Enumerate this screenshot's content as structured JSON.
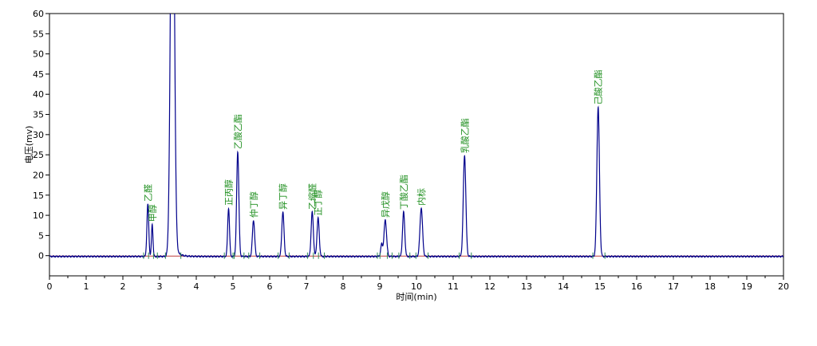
{
  "chart_data": {
    "type": "line",
    "xlabel": "时间(min)",
    "ylabel": "电压(mv)",
    "xlim": [
      0,
      20
    ],
    "ylim": [
      -5,
      60
    ],
    "x_ticks": [
      0,
      1,
      2,
      3,
      4,
      5,
      6,
      7,
      8,
      9,
      10,
      11,
      12,
      13,
      14,
      15,
      16,
      17,
      18,
      19,
      20
    ],
    "y_ticks": [
      0,
      5,
      10,
      15,
      20,
      25,
      30,
      35,
      40,
      45,
      50,
      55,
      60
    ],
    "grid": false,
    "colors": {
      "trace": "#00008b",
      "baseline": "#b22222",
      "labels": "#1f8f1f",
      "axes": "#000000"
    },
    "peaks": [
      {
        "time": 2.68,
        "height": 13.0,
        "width": 0.025,
        "label": "乙醛"
      },
      {
        "time": 2.8,
        "height": 8.0,
        "width": 0.02,
        "label": "甲醇"
      },
      {
        "time": 3.35,
        "height": 120,
        "width": 0.05,
        "label": ""
      },
      {
        "time": 4.88,
        "height": 12.0,
        "width": 0.025,
        "label": "正丙醇"
      },
      {
        "time": 5.13,
        "height": 26.0,
        "width": 0.03,
        "label": "乙酸乙酯"
      },
      {
        "time": 5.56,
        "height": 9.0,
        "width": 0.03,
        "label": "仲丁醇"
      },
      {
        "time": 6.36,
        "height": 11.0,
        "width": 0.03,
        "label": "异丁醇"
      },
      {
        "time": 7.16,
        "height": 11.0,
        "width": 0.03,
        "label": "乙缩醛"
      },
      {
        "time": 7.32,
        "height": 9.5,
        "width": 0.03,
        "label": "正丁醇"
      },
      {
        "time": 9.05,
        "height": 3.0,
        "width": 0.025,
        "label": ""
      },
      {
        "time": 9.15,
        "height": 9.0,
        "width": 0.035,
        "label": "异戊醇"
      },
      {
        "time": 9.65,
        "height": 11.0,
        "width": 0.03,
        "label": "丁酸乙酯"
      },
      {
        "time": 10.13,
        "height": 12.0,
        "width": 0.035,
        "label": "内标"
      },
      {
        "time": 11.31,
        "height": 25.0,
        "width": 0.035,
        "label": "乳酸乙酯"
      },
      {
        "time": 14.95,
        "height": 37.0,
        "width": 0.035,
        "label": "己酸乙酯"
      }
    ]
  }
}
